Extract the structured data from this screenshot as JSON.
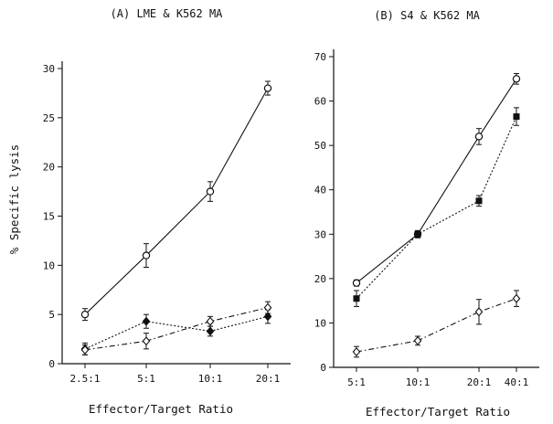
{
  "chart_data": [
    {
      "type": "line",
      "title": "(A) LME & K562 MA",
      "xlabel": "Effector/Target Ratio",
      "ylabel": "% Specific lysis",
      "categories": [
        "2.5:1",
        "5:1",
        "10:1",
        "20:1"
      ],
      "ylim": [
        0,
        30
      ],
      "yticks": [
        0,
        5,
        10,
        15,
        20,
        25,
        30
      ],
      "grid": false,
      "series": [
        {
          "marker": "open-circle",
          "line": "solid",
          "values": [
            5.0,
            11.0,
            17.5,
            28.0
          ],
          "errors": [
            0.6,
            1.2,
            1.0,
            0.7
          ]
        },
        {
          "marker": "filled-diamond",
          "line": "dotted",
          "values": [
            1.5,
            4.3,
            3.3,
            4.8
          ],
          "errors": [
            0.6,
            0.7,
            0.5,
            0.7
          ]
        },
        {
          "marker": "open-diamond",
          "line": "dash-dot",
          "values": [
            1.4,
            2.3,
            4.3,
            5.7
          ],
          "errors": [
            0.5,
            0.8,
            0.5,
            0.6
          ]
        }
      ]
    },
    {
      "type": "line",
      "title": "(B) S4 & K562 MA",
      "xlabel": "Effector/Target Ratio",
      "ylabel": "",
      "categories": [
        "5:1",
        "10:1",
        "20:1",
        "40:1"
      ],
      "ylim": [
        0,
        70
      ],
      "yticks": [
        0,
        10,
        20,
        30,
        40,
        50,
        60,
        70
      ],
      "grid": false,
      "series": [
        {
          "marker": "open-circle",
          "line": "solid",
          "values": [
            19.0,
            30.0,
            52.0,
            65.0
          ],
          "errors": [
            0.7,
            0.8,
            1.8,
            1.2
          ]
        },
        {
          "marker": "filled-square",
          "line": "dotted",
          "values": [
            15.5,
            30.0,
            37.5,
            56.5
          ],
          "errors": [
            1.8,
            0.8,
            1.2,
            2.0
          ]
        },
        {
          "marker": "open-diamond",
          "line": "dash-dot",
          "values": [
            3.5,
            6.0,
            12.5,
            15.5
          ],
          "errors": [
            1.2,
            1.0,
            2.8,
            1.8
          ]
        }
      ]
    }
  ]
}
